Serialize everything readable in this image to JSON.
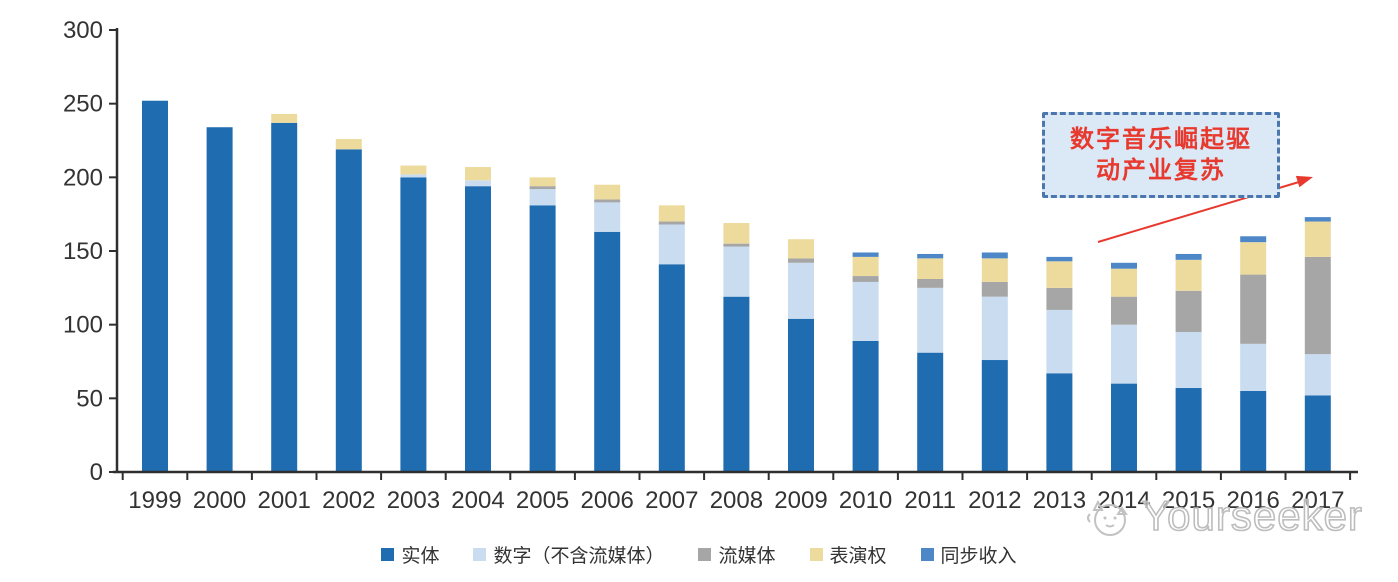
{
  "chart_data": {
    "type": "bar",
    "stacked": true,
    "title": "",
    "xlabel": "",
    "ylabel": "",
    "ylim": [
      0,
      300
    ],
    "yticks": [
      0,
      50,
      100,
      150,
      200,
      250,
      300
    ],
    "grid": false,
    "legend_position": "bottom",
    "categories": [
      "1999",
      "2000",
      "2001",
      "2002",
      "2003",
      "2004",
      "2005",
      "2006",
      "2007",
      "2008",
      "2009",
      "2010",
      "2011",
      "2012",
      "2013",
      "2014",
      "2015",
      "2016",
      "2017"
    ],
    "series": [
      {
        "name": "实体",
        "color": "#1f6cb0",
        "values": [
          252,
          234,
          237,
          219,
          200,
          194,
          181,
          163,
          141,
          119,
          104,
          89,
          81,
          76,
          67,
          60,
          57,
          55,
          52
        ]
      },
      {
        "name": "数字（不含流媒体）",
        "color": "#c9dcf0",
        "values": [
          0,
          0,
          0,
          0,
          2,
          4,
          11,
          20,
          27,
          34,
          38,
          40,
          44,
          43,
          43,
          40,
          38,
          32,
          28
        ]
      },
      {
        "name": "流媒体",
        "color": "#a6a6a6",
        "values": [
          0,
          0,
          0,
          0,
          0,
          0,
          2,
          2,
          2,
          2,
          3,
          4,
          6,
          10,
          15,
          19,
          28,
          47,
          66
        ]
      },
      {
        "name": "表演权",
        "color": "#eddb9d",
        "values": [
          0,
          0,
          6,
          7,
          6,
          9,
          6,
          10,
          11,
          14,
          13,
          13,
          14,
          16,
          18,
          19,
          21,
          22,
          24
        ]
      },
      {
        "name": "同步收入",
        "color": "#4e87c8",
        "values": [
          0,
          0,
          0,
          0,
          0,
          0,
          0,
          0,
          0,
          0,
          0,
          3,
          3,
          4,
          3,
          4,
          4,
          4,
          3
        ]
      }
    ]
  },
  "annotation": {
    "line1": "数字音乐崛起驱",
    "line2": "动产业复苏",
    "full_text": "数字音乐崛起驱动产业复苏",
    "text_color": "#e8392f",
    "box_fill": "#dbe8f6",
    "box_border": "#4b77ae",
    "arrow_color": "#e8392f"
  },
  "watermark": {
    "text": "Yourseeker"
  },
  "axis": {
    "color": "#2f2f2f",
    "label_color": "#333333"
  }
}
